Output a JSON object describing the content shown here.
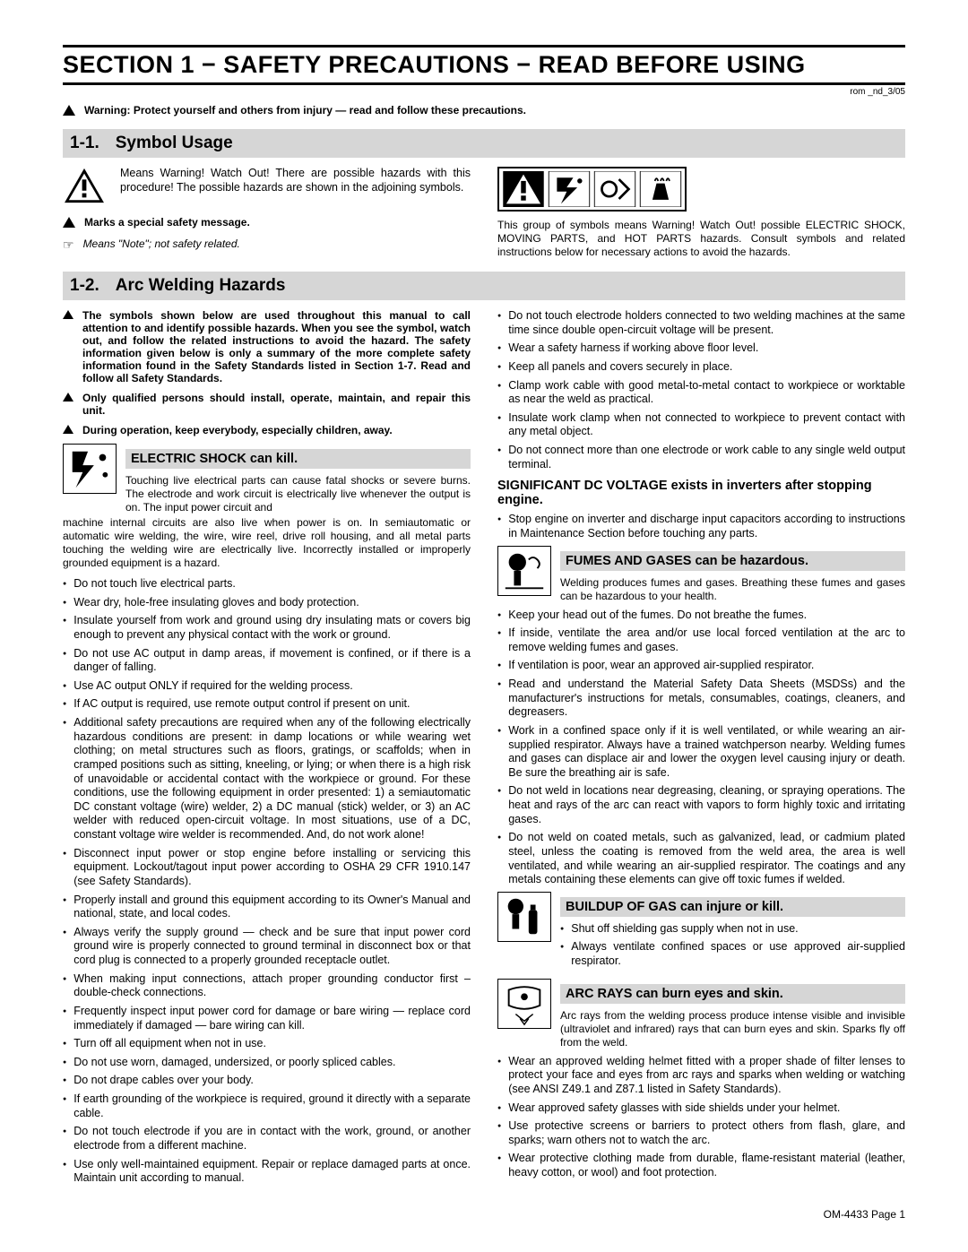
{
  "header": "SECTION 1 − SAFETY PRECAUTIONS − READ BEFORE USING",
  "rev": "rom _nd_3/05",
  "top_warning": "Warning: Protect yourself and others from injury — read and follow these precautions.",
  "s11": {
    "num": "1-1.",
    "title": "Symbol Usage"
  },
  "symbol_means": "Means Warning! Watch Out! There are possible hazards with this procedure! The possible hazards are shown in the adjoining symbols.",
  "marks_msg": "Marks a special safety message.",
  "note_icon": "☞",
  "note_msg": "Means \"Note\"; not safety related.",
  "hazard_caption": "This group of symbols means Warning! Watch Out! possible ELECTRIC SHOCK, MOVING PARTS, and HOT PARTS hazards. Consult symbols and related instructions below for necessary actions to avoid the hazards.",
  "s12": {
    "num": "1-2.",
    "title": "Arc Welding Hazards"
  },
  "left_intro": [
    "The symbols shown below are used throughout this manual to call attention to and identify possible hazards. When you see the symbol, watch out, and follow the related instructions to avoid the hazard. The safety information given below is only a summary of the more complete safety information found in the Safety Standards listed in Section 1-7. Read and follow all Safety Standards.",
    "Only qualified persons should install, operate, maintain, and repair this unit.",
    "During operation, keep everybody, especially children, away."
  ],
  "shock": {
    "title": "ELECTRIC SHOCK can kill.",
    "intro": "Touching live electrical parts can cause fatal shocks or severe burns. The electrode and work circuit is electrically live whenever the output is on. The input power circuit and machine internal circuits are also live when power is on. In semiautomatic or automatic wire welding, the wire, wire reel, drive roll housing, and all metal parts touching the welding wire are electrically live. Incorrectly installed or improperly grounded equipment is a hazard.",
    "items": [
      "Do not touch live electrical parts.",
      "Wear dry, hole-free insulating gloves and body protection.",
      "Insulate yourself from work and ground using dry insulating mats or covers big enough to prevent any physical contact with the work or ground.",
      "Do not use AC output in damp areas, if movement is confined, or if there is a danger of falling.",
      "Use AC output ONLY if required for the welding process.",
      "If AC output is required, use remote output control if present on unit.",
      "Additional safety precautions are required when any of the following electrically hazardous conditions are present: in damp locations or while wearing wet clothing; on metal structures such as floors, gratings, or scaffolds; when in cramped positions such as sitting, kneeling, or lying; or when there is a high risk of unavoidable or accidental contact with the workpiece or ground. For these conditions, use the following equipment in order presented: 1) a semiautomatic DC constant voltage (wire) welder, 2) a DC manual (stick) welder, or 3) an AC welder with reduced open-circuit voltage. In most situations, use of a DC, constant voltage wire welder is recommended. And, do not work alone!",
      "Disconnect input power or stop engine before installing or servicing this equipment. Lockout/tagout input power according to OSHA 29 CFR 1910.147 (see Safety Standards).",
      "Properly install and ground this equipment according to its Owner's Manual and national, state, and local codes.",
      "Always verify the supply ground — check and be sure that input power cord ground wire is properly connected to ground terminal in disconnect box or that cord plug is connected to a properly grounded receptacle outlet.",
      "When making input connections, attach proper grounding conductor first – double-check connections.",
      "Frequently inspect input power cord for damage or bare wiring — replace cord immediately if damaged — bare wiring can kill.",
      "Turn off all equipment when not in use.",
      "Do not use worn, damaged, undersized, or poorly spliced cables.",
      "Do not drape cables over your body.",
      "If earth grounding of the workpiece is required, ground it directly with a separate cable.",
      "Do not touch electrode if you are in contact with the work, ground, or another electrode from a different machine.",
      "Use only well-maintained equipment. Repair or replace damaged parts at once. Maintain unit according to manual."
    ]
  },
  "right_top_items": [
    "Do not touch electrode holders connected to two welding machines at the same time since double open-circuit voltage will be present.",
    "Wear a safety harness if working above floor level.",
    "Keep all panels and covers securely in place.",
    "Clamp work cable with good metal-to-metal contact to workpiece or worktable as near the weld as practical.",
    "Insulate work clamp when not connected to workpiece to prevent contact with any metal object.",
    "Do not connect more than one electrode or work cable to any single weld output terminal."
  ],
  "dc": {
    "title": "SIGNIFICANT DC VOLTAGE exists in inverters after stopping engine.",
    "items": [
      "Stop engine on inverter and discharge input capacitors according to instructions in Maintenance Section before touching any parts."
    ]
  },
  "fumes": {
    "title": "FUMES AND GASES can be hazardous.",
    "intro": "Welding produces fumes and gases. Breathing these fumes and gases can be hazardous to your health.",
    "items": [
      "Keep your head out of the fumes. Do not breathe the fumes.",
      "If inside, ventilate the area and/or use local forced ventilation at the arc to remove welding fumes and gases.",
      "If ventilation is poor, wear an approved air-supplied respirator.",
      "Read and understand the Material Safety Data Sheets (MSDSs) and the manufacturer's instructions for metals, consumables, coatings, cleaners, and degreasers.",
      "Work in a confined space only if it is well ventilated, or while wearing an air-supplied respirator. Always have a trained watchperson nearby. Welding fumes and gases can displace air and lower the oxygen level causing injury or death. Be sure the breathing air is safe.",
      "Do not weld in locations near degreasing, cleaning, or spraying operations. The heat and rays of the arc can react with vapors to form highly toxic and irritating gases.",
      "Do not weld on coated metals, such as galvanized, lead, or cadmium plated steel, unless the coating is removed from the weld area, the area is well ventilated, and while wearing an air-supplied respirator. The coatings and any metals containing these elements can give off toxic fumes if welded."
    ]
  },
  "gas": {
    "title": "BUILDUP OF GAS can injure or kill.",
    "items": [
      "Shut off shielding gas supply when not in use.",
      "Always ventilate confined spaces or use approved air-supplied respirator."
    ]
  },
  "arc": {
    "title": "ARC RAYS can burn eyes and skin.",
    "intro": "Arc rays from the welding process produce intense visible and invisible (ultraviolet and infrared) rays that can burn eyes and skin. Sparks fly off from the weld.",
    "items": [
      "Wear an approved welding helmet fitted with a proper shade of filter lenses to protect your face and eyes from arc rays and sparks when welding or watching (see ANSI Z49.1 and Z87.1 listed in Safety Standards).",
      "Wear approved safety glasses with side shields under your helmet.",
      "Use protective screens or barriers to protect others from flash, glare, and sparks; warn others not to watch the arc.",
      "Wear protective clothing made from durable, flame-resistant material (leather, heavy cotton, or wool) and foot protection."
    ]
  },
  "footer": "OM-4433 Page 1"
}
